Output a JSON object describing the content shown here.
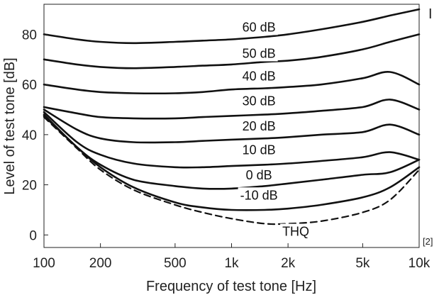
{
  "chart_data": {
    "type": "line",
    "xlabel": "Frequency of test tone [Hz]",
    "ylabel": "Level of test tone [dB]",
    "x_scale": "log",
    "xlim": [
      100,
      10000
    ],
    "ylim": [
      -5,
      92
    ],
    "grid": false,
    "x_ticks": [
      100,
      200,
      500,
      1000,
      2000,
      5000,
      10000
    ],
    "x_tick_labels": [
      "100",
      "200",
      "500",
      "1k",
      "2k",
      "5k",
      "10k"
    ],
    "y_ticks": [
      0,
      20,
      40,
      60,
      80
    ],
    "y_tick_labels": [
      "0",
      "20",
      "40",
      "60",
      "80"
    ],
    "corner_label_top_right": "I",
    "corner_label_bottom_right": "[2]",
    "x": [
      100,
      150,
      200,
      300,
      500,
      700,
      1000,
      1500,
      2000,
      3000,
      5000,
      7000,
      10000
    ],
    "series": [
      {
        "name": "60 dB",
        "style": "solid",
        "values": [
          80,
          78,
          77,
          76.5,
          77,
          77.5,
          78,
          79,
          80,
          82,
          85,
          87.5,
          90
        ]
      },
      {
        "name": "50 dB",
        "style": "solid",
        "values": [
          70,
          68,
          67,
          66.5,
          67,
          67.5,
          68,
          69,
          69.5,
          71,
          74,
          77,
          80
        ]
      },
      {
        "name": "40 dB",
        "style": "solid",
        "values": [
          60,
          58,
          57,
          56.5,
          56.5,
          57,
          58,
          58.5,
          59,
          60,
          62.5,
          65,
          60
        ]
      },
      {
        "name": "30 dB",
        "style": "solid",
        "values": [
          51,
          48.5,
          47,
          46.5,
          46.5,
          47,
          47.5,
          48,
          48.5,
          49.5,
          51,
          54,
          50
        ]
      },
      {
        "name": "20 dB",
        "style": "solid",
        "values": [
          50,
          42,
          38.5,
          37,
          37,
          37.5,
          38,
          38.5,
          39,
          40,
          41,
          44,
          40
        ]
      },
      {
        "name": "10 dB",
        "style": "solid",
        "values": [
          49,
          37,
          32,
          28.5,
          27,
          27,
          27.5,
          28,
          28.5,
          29.5,
          31,
          33,
          30
        ]
      },
      {
        "name": "0 dB",
        "style": "solid",
        "values": [
          48,
          35,
          28,
          22,
          19.5,
          18.5,
          18.5,
          19.5,
          20.5,
          22,
          24,
          25,
          30
        ]
      },
      {
        "name": "-10 dB",
        "style": "solid",
        "values": [
          47.5,
          35,
          27,
          19,
          13,
          11,
          10,
          10,
          10.5,
          12,
          15,
          19,
          27
        ]
      },
      {
        "name": "THQ",
        "style": "dashed",
        "values": [
          47,
          34.5,
          26,
          18,
          12,
          9,
          6.5,
          4.5,
          4.5,
          5.5,
          9,
          14,
          26
        ]
      }
    ],
    "curve_label_positions_x": [
      1400,
      1400,
      1400,
      1400,
      1400,
      1400,
      1400,
      1400,
      2200
    ],
    "curve_label_positions_y": [
      82.5,
      72,
      63,
      53,
      43,
      33.5,
      23.5,
      15.5,
      1
    ]
  }
}
